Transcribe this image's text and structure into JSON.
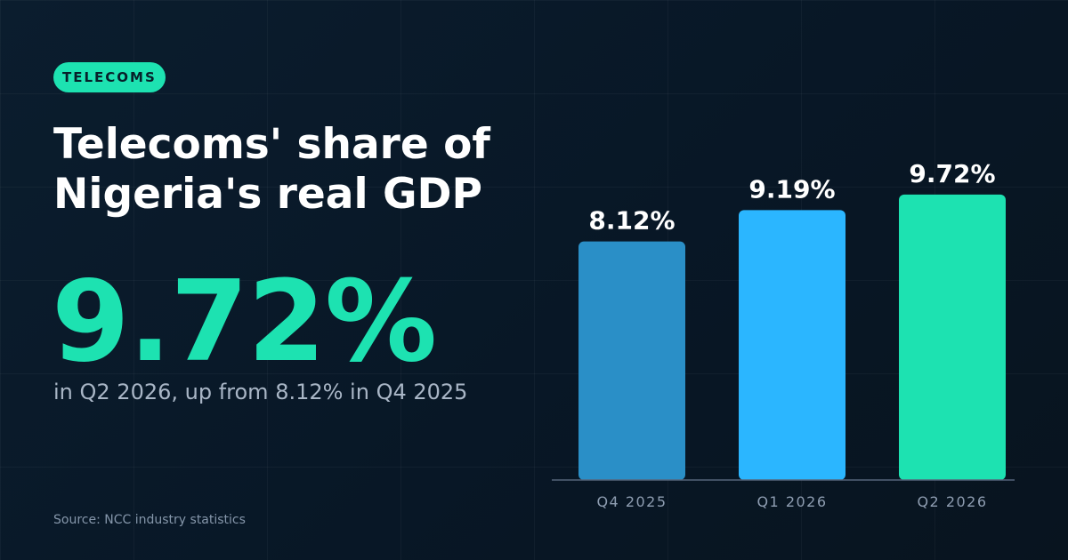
{
  "badge": "TELECOMS",
  "title_line1": "Telecoms' share of",
  "title_line2": "Nigeria's real GDP",
  "big_value": "9.72%",
  "subtitle": "in Q2 2026, up from 8.12% in Q4 2025",
  "source": "Source: NCC industry statistics",
  "colors": {
    "accent": "#1de2b1",
    "bar_colors": [
      "#2a8fc7",
      "#2bb6ff",
      "#1de2b1"
    ],
    "baseline": "#56657a"
  },
  "chart_data": {
    "type": "bar",
    "categories": [
      "Q4 2025",
      "Q1 2026",
      "Q2 2026"
    ],
    "values": [
      8.12,
      9.19,
      9.72
    ],
    "value_labels": [
      "8.12%",
      "9.19%",
      "9.72%"
    ],
    "title": "",
    "xlabel": "",
    "ylabel": "",
    "ylim": [
      0,
      11.5
    ],
    "grid": false,
    "legend": "none"
  }
}
